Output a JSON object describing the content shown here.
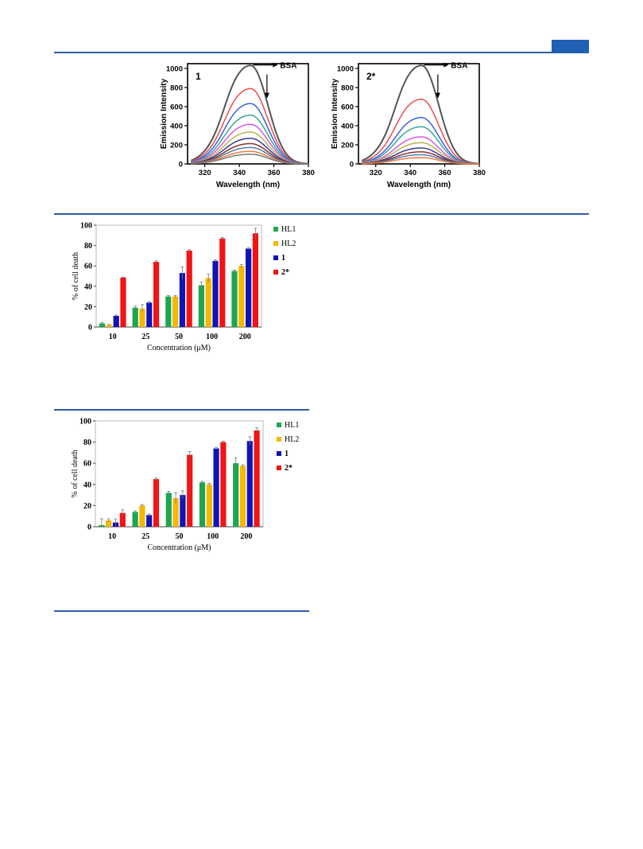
{
  "chart_data": [
    {
      "type": "line",
      "panel_label": "1",
      "xlabel": "Wavelength (nm)",
      "ylabel": "Emission Intensity",
      "xlim": [
        310,
        380
      ],
      "ylim": [
        0,
        1050
      ],
      "xticks": [
        320,
        340,
        360,
        380
      ],
      "yticks": [
        0,
        200,
        400,
        600,
        800,
        1000
      ],
      "annotation": "BSA",
      "peak_x": 347,
      "series": [
        {
          "peak": 1020,
          "color": "#555555"
        },
        {
          "peak": 780,
          "color": "#ef4a4a"
        },
        {
          "peak": 625,
          "color": "#3a5ee6"
        },
        {
          "peak": 505,
          "color": "#35a79a"
        },
        {
          "peak": 410,
          "color": "#e055e0"
        },
        {
          "peak": 330,
          "color": "#b7b64b"
        },
        {
          "peak": 265,
          "color": "#3a3a99"
        },
        {
          "peak": 210,
          "color": "#8b3030"
        },
        {
          "peak": 170,
          "color": "#4f7ea9"
        },
        {
          "peak": 130,
          "color": "#ef7a3a"
        },
        {
          "peak": 100,
          "color": "#7a7a7a"
        }
      ]
    },
    {
      "type": "line",
      "panel_label": "2*",
      "xlabel": "Wavelength (nm)",
      "ylabel": "Emission Intensity",
      "xlim": [
        310,
        380
      ],
      "ylim": [
        0,
        1050
      ],
      "xticks": [
        320,
        340,
        360,
        380
      ],
      "yticks": [
        0,
        200,
        400,
        600,
        800,
        1000
      ],
      "annotation": "BSA",
      "peak_x": 347,
      "series": [
        {
          "peak": 1020,
          "color": "#555555"
        },
        {
          "peak": 670,
          "color": "#ef4a4a"
        },
        {
          "peak": 480,
          "color": "#3a5ee6"
        },
        {
          "peak": 385,
          "color": "#35a79a"
        },
        {
          "peak": 280,
          "color": "#e055e0"
        },
        {
          "peak": 220,
          "color": "#b7b64b"
        },
        {
          "peak": 165,
          "color": "#3a3a99"
        },
        {
          "peak": 125,
          "color": "#8b3030"
        },
        {
          "peak": 95,
          "color": "#4f7ea9"
        },
        {
          "peak": 65,
          "color": "#ef7a3a"
        }
      ]
    },
    {
      "type": "bar",
      "xlabel": "Concentration (μM)",
      "ylabel": "% of cell death",
      "ylim": [
        0,
        100
      ],
      "yticks": [
        0,
        20,
        40,
        60,
        80,
        100
      ],
      "categories": [
        "10",
        "25",
        "50",
        "100",
        "200"
      ],
      "legend_position": "right",
      "series": [
        {
          "name": "HL1",
          "color": "#1fa54f",
          "values": [
            3.5,
            19,
            30,
            41,
            55
          ],
          "errors": [
            0.8,
            1.5,
            1,
            3,
            1
          ]
        },
        {
          "name": "HL2",
          "color": "#f5b800",
          "values": [
            2,
            18,
            30,
            48,
            60
          ],
          "errors": [
            0.5,
            4,
            1,
            4,
            1.5
          ]
        },
        {
          "name": "1",
          "color": "#0f14b4",
          "values": [
            11,
            24,
            53,
            65,
            77
          ],
          "errors": [
            0.8,
            1,
            6,
            1,
            1
          ]
        },
        {
          "name": "2*",
          "color": "#f01414",
          "values": [
            48.5,
            64,
            75,
            87,
            92
          ],
          "errors": [
            0.5,
            1,
            1,
            1,
            5
          ]
        }
      ]
    },
    {
      "type": "bar",
      "xlabel": "Concentration (μM)",
      "ylabel": "% of cell death",
      "ylim": [
        0,
        100
      ],
      "yticks": [
        0,
        20,
        40,
        60,
        80,
        100
      ],
      "categories": [
        "10",
        "25",
        "50",
        "100",
        "200"
      ],
      "legend_position": "right",
      "series": [
        {
          "name": "HL1",
          "color": "#1fa54f",
          "values": [
            1.5,
            14,
            32,
            42,
            60
          ],
          "errors": [
            6,
            1,
            1.5,
            1,
            5
          ]
        },
        {
          "name": "HL2",
          "color": "#f5b800",
          "values": [
            6,
            20,
            27,
            40,
            57.5
          ],
          "errors": [
            1.5,
            1,
            5,
            1,
            1
          ]
        },
        {
          "name": "1",
          "color": "#0f14b4",
          "values": [
            4,
            11,
            30,
            74,
            81
          ],
          "errors": [
            3.5,
            1,
            4,
            1,
            4
          ]
        },
        {
          "name": "2*",
          "color": "#f01414",
          "values": [
            13,
            45,
            68,
            80,
            91
          ],
          "errors": [
            3,
            1,
            3,
            1,
            2.5
          ]
        }
      ]
    }
  ]
}
